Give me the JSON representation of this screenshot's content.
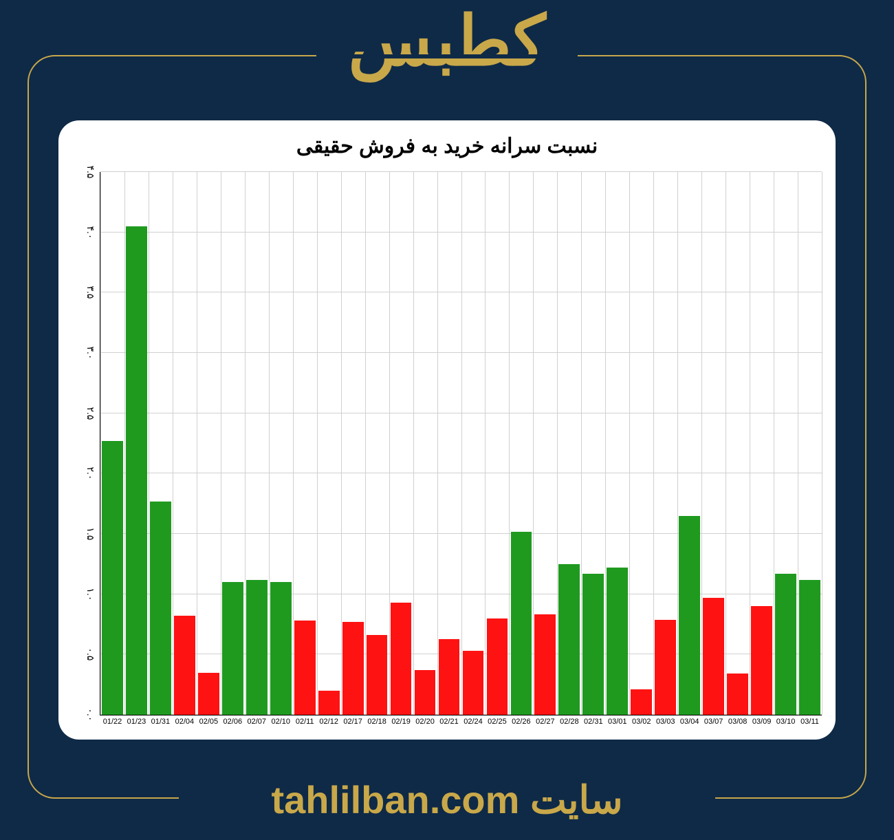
{
  "header": {
    "title": "کطبس"
  },
  "footer": {
    "text": "سایت tahlilban.com"
  },
  "chart": {
    "type": "bar",
    "title": "نسبت سرانه خرید به فروش حقیقی",
    "title_fontsize": 30,
    "background_color": "#ffffff",
    "page_background": "#0f2a47",
    "accent_color": "#c9a84a",
    "grid_color": "#d0d0d0",
    "axis_color": "#000000",
    "bar_width": 0.88,
    "ylim": [
      0,
      4.5
    ],
    "ytick_step": 0.5,
    "yticks": [
      "۰.۰",
      "۰.۵",
      "۱.۰",
      "۱.۵",
      "۲.۰",
      "۲.۵",
      "۳.۰",
      "۳.۵",
      "۴.۰",
      "۴.۵"
    ],
    "green": "#1f9a1f",
    "red": "#ff1212",
    "categories": [
      "01/22",
      "01/23",
      "01/31",
      "02/04",
      "02/05",
      "02/06",
      "02/07",
      "02/10",
      "02/11",
      "02/12",
      "02/17",
      "02/18",
      "02/19",
      "02/20",
      "02/21",
      "02/24",
      "02/25",
      "02/26",
      "02/27",
      "02/28",
      "02/31",
      "03/01",
      "03/02",
      "03/03",
      "03/04",
      "03/07",
      "03/08",
      "03/09",
      "03/10",
      "03/11"
    ],
    "values": [
      2.27,
      4.05,
      1.77,
      0.82,
      0.35,
      1.1,
      1.12,
      1.1,
      0.78,
      0.2,
      0.77,
      0.66,
      0.93,
      0.37,
      0.63,
      0.53,
      0.8,
      1.52,
      0.83,
      1.25,
      1.17,
      1.22,
      0.21,
      0.79,
      1.65,
      0.97,
      0.34,
      0.9,
      1.17,
      1.12
    ],
    "colors": [
      "green",
      "green",
      "green",
      "red",
      "red",
      "green",
      "green",
      "green",
      "red",
      "red",
      "red",
      "red",
      "red",
      "red",
      "red",
      "red",
      "red",
      "green",
      "red",
      "green",
      "green",
      "green",
      "red",
      "red",
      "green",
      "red",
      "red",
      "red",
      "green",
      "green"
    ]
  }
}
